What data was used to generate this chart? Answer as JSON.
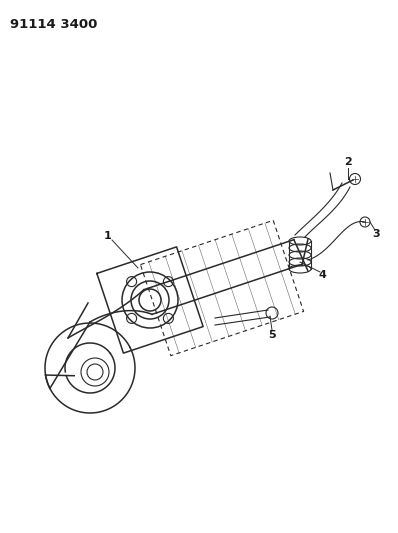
{
  "title": "91114 3400",
  "bg_color": "#ffffff",
  "line_color": "#2a2a2a",
  "label_color": "#1a1a1a",
  "figsize": [
    3.98,
    5.33
  ],
  "dpi": 100
}
